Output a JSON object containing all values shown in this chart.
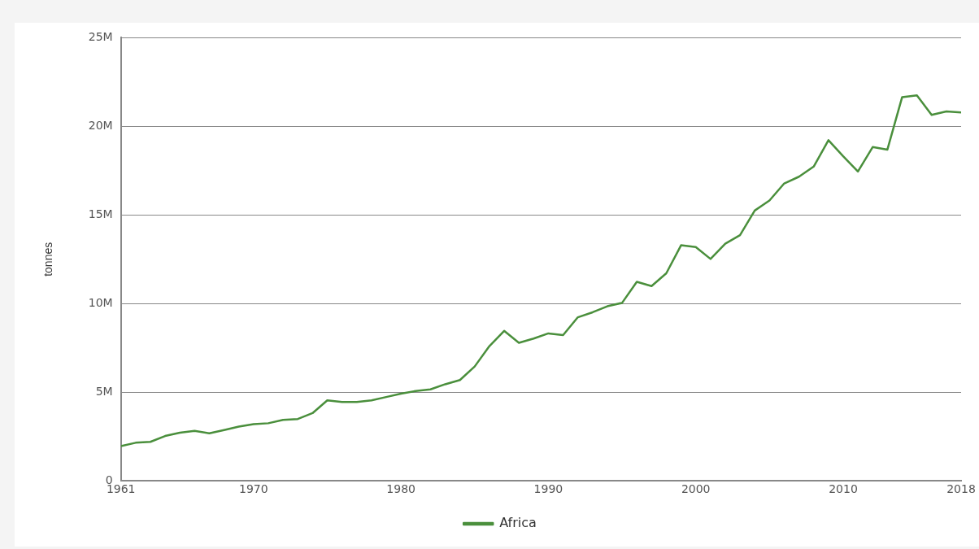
{
  "chart_data": {
    "type": "line",
    "ylabel": "tonnes",
    "x": [
      1961,
      1962,
      1963,
      1964,
      1965,
      1966,
      1967,
      1968,
      1969,
      1970,
      1971,
      1972,
      1973,
      1974,
      1975,
      1976,
      1977,
      1978,
      1979,
      1980,
      1981,
      1982,
      1983,
      1984,
      1985,
      1986,
      1987,
      1988,
      1989,
      1990,
      1991,
      1992,
      1993,
      1994,
      1995,
      1996,
      1997,
      1998,
      1999,
      2000,
      2001,
      2002,
      2003,
      2004,
      2005,
      2006,
      2007,
      2008,
      2009,
      2010,
      2011,
      2012,
      2013,
      2014,
      2015,
      2016,
      2017,
      2018
    ],
    "series": [
      {
        "name": "Africa",
        "color": "#4a8f3c",
        "values": [
          1960000,
          2150000,
          2200000,
          2530000,
          2720000,
          2820000,
          2680000,
          2870000,
          3060000,
          3200000,
          3250000,
          3440000,
          3490000,
          3820000,
          4540000,
          4450000,
          4450000,
          4540000,
          4730000,
          4920000,
          5070000,
          5160000,
          5450000,
          5690000,
          6450000,
          7600000,
          8460000,
          7790000,
          8030000,
          8320000,
          8220000,
          9230000,
          9510000,
          9850000,
          10040000,
          11230000,
          10990000,
          11710000,
          13290000,
          13190000,
          12520000,
          13380000,
          13860000,
          15250000,
          15820000,
          16780000,
          17160000,
          17730000,
          19220000,
          18310000,
          17450000,
          18830000,
          18690000,
          21650000,
          21750000,
          20650000,
          20840000,
          20790000
        ]
      }
    ],
    "xlim": [
      1961,
      2018
    ],
    "xticks": [
      1961,
      1970,
      1980,
      1990,
      2000,
      2010,
      2018
    ],
    "ylim": [
      0,
      25000000
    ],
    "yticks": [
      {
        "value": 0,
        "label": "0"
      },
      {
        "value": 5000000,
        "label": "5M"
      },
      {
        "value": 10000000,
        "label": "10M"
      },
      {
        "value": 15000000,
        "label": "15M"
      },
      {
        "value": 20000000,
        "label": "20M"
      },
      {
        "value": 25000000,
        "label": "25M"
      }
    ],
    "grid": "y",
    "legend": "bottom",
    "marker": "none",
    "line_style": "solid"
  }
}
